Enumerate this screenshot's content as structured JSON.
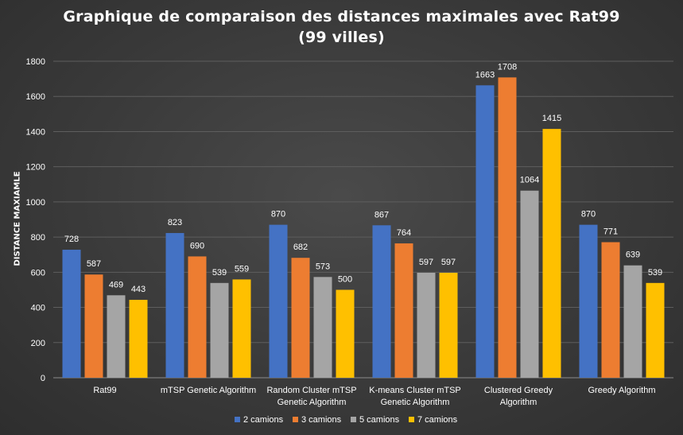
{
  "chart_data": {
    "type": "bar",
    "title_line1": "Graphique de comparaison des distances maximales avec Rat99",
    "title_line2": "(99 villes)",
    "xlabel": "",
    "ylabel": "DISTANCE MAXIAMLE",
    "ylim": [
      0,
      1800
    ],
    "yticks": [
      0,
      200,
      400,
      600,
      800,
      1000,
      1200,
      1400,
      1600,
      1800
    ],
    "grid": true,
    "legend_position": "bottom",
    "categories": [
      [
        "Rat99"
      ],
      [
        "mTSP Genetic Algorithm"
      ],
      [
        "Random Cluster mTSP",
        "Genetic Algorithm"
      ],
      [
        "K-means Cluster mTSP",
        "Genetic Algorithm"
      ],
      [
        "Clustered Greedy",
        "Algorithm"
      ],
      [
        "Greedy Algorithm"
      ]
    ],
    "series": [
      {
        "name": "2 camions",
        "color": "#4472c4",
        "values": [
          728,
          823,
          870,
          867,
          1663,
          870
        ]
      },
      {
        "name": "3 camions",
        "color": "#ed7d31",
        "values": [
          587,
          690,
          682,
          764,
          1708,
          771
        ]
      },
      {
        "name": "5 camions",
        "color": "#a5a5a5",
        "values": [
          469,
          539,
          573,
          597,
          1064,
          639
        ]
      },
      {
        "name": "7 camions",
        "color": "#ffc000",
        "values": [
          443,
          559,
          500,
          597,
          1415,
          539
        ]
      }
    ]
  }
}
